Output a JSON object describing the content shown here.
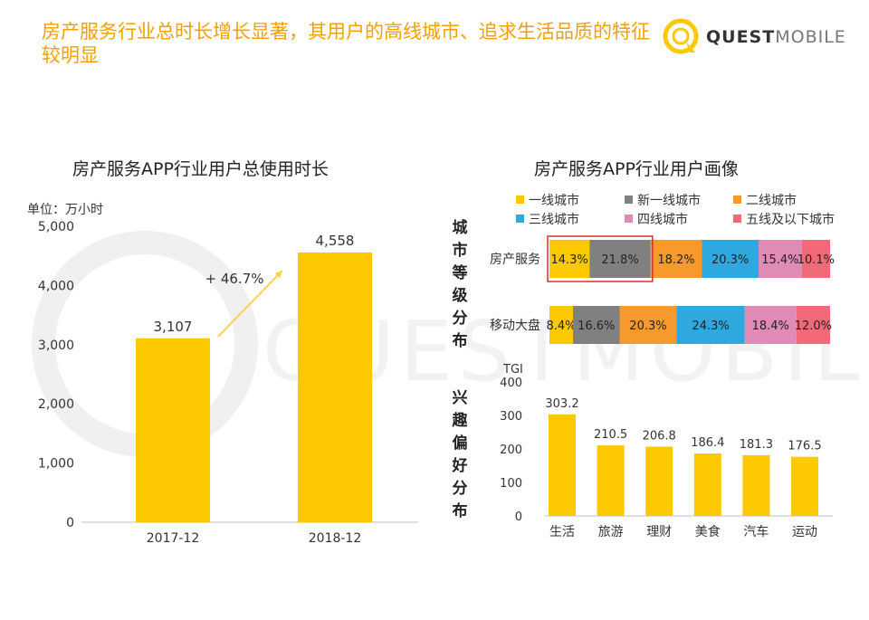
{
  "header": {
    "title": "房产服务行业总时长增长显著，其用户的高线城市、追求生活品质的特征较明显",
    "logo": {
      "quest": "QUEST",
      "mobile": "MOBILE"
    }
  },
  "watermark": {
    "text": "QUESTMOBILE"
  },
  "chart_data": [
    {
      "type": "bar",
      "title": "房产服务APP行业用户总使用时长",
      "unit_label": "单位：万小时",
      "categories": [
        "2017-12",
        "2018-12"
      ],
      "values": [
        3107,
        4558
      ],
      "value_labels": [
        "3,107",
        "4,558"
      ],
      "ylim": [
        0,
        5000
      ],
      "yticks": [
        "0",
        "1,000",
        "2,000",
        "3,000",
        "4,000",
        "5,000"
      ],
      "annotation": "+ 46.7%",
      "color": "#fcc800"
    },
    {
      "type": "bar",
      "stacked": true,
      "horizontal": true,
      "title": "房产服务APP行业用户画像",
      "section_label": "城市等级分布",
      "legend_position": "top",
      "categories": [
        "房产服务",
        "移动大盘"
      ],
      "series": [
        {
          "name": "一线城市",
          "color": "#fcc800",
          "values": [
            14.3,
            8.4
          ],
          "labels": [
            "14.3%",
            "8.4%"
          ]
        },
        {
          "name": "新一线城市",
          "color": "#808080",
          "values": [
            21.8,
            16.6
          ],
          "labels": [
            "21.8%",
            "16.6%"
          ]
        },
        {
          "name": "二线城市",
          "color": "#f79a2e",
          "values": [
            18.2,
            20.3
          ],
          "labels": [
            "18.2%",
            "20.3%"
          ]
        },
        {
          "name": "三线城市",
          "color": "#2fa8e0",
          "values": [
            20.3,
            24.3
          ],
          "labels": [
            "20.3%",
            "24.3%"
          ]
        },
        {
          "name": "四线城市",
          "color": "#e08ab6",
          "values": [
            15.4,
            18.4
          ],
          "labels": [
            "15.4%",
            "18.4%"
          ]
        },
        {
          "name": "五线及以下城市",
          "color": "#f26a7a",
          "values": [
            10.1,
            12.0
          ],
          "labels": [
            "10.1%",
            "12.0%"
          ]
        }
      ],
      "highlight": {
        "category": "房产服务",
        "segments": [
          "一线城市",
          "新一线城市"
        ],
        "color": "#d0312d"
      }
    },
    {
      "type": "bar",
      "section_label": "兴趣偏好分布",
      "ylabel": "TGI",
      "categories": [
        "生活",
        "旅游",
        "理财",
        "美食",
        "汽车",
        "运动"
      ],
      "values": [
        303.2,
        210.5,
        206.8,
        186.4,
        181.3,
        176.5
      ],
      "value_labels": [
        "303.2",
        "210.5",
        "206.8",
        "186.4",
        "181.3",
        "176.5"
      ],
      "ylim": [
        0,
        400
      ],
      "yticks": [
        "0",
        "100",
        "200",
        "300",
        "400"
      ],
      "color": "#fcc800"
    }
  ]
}
